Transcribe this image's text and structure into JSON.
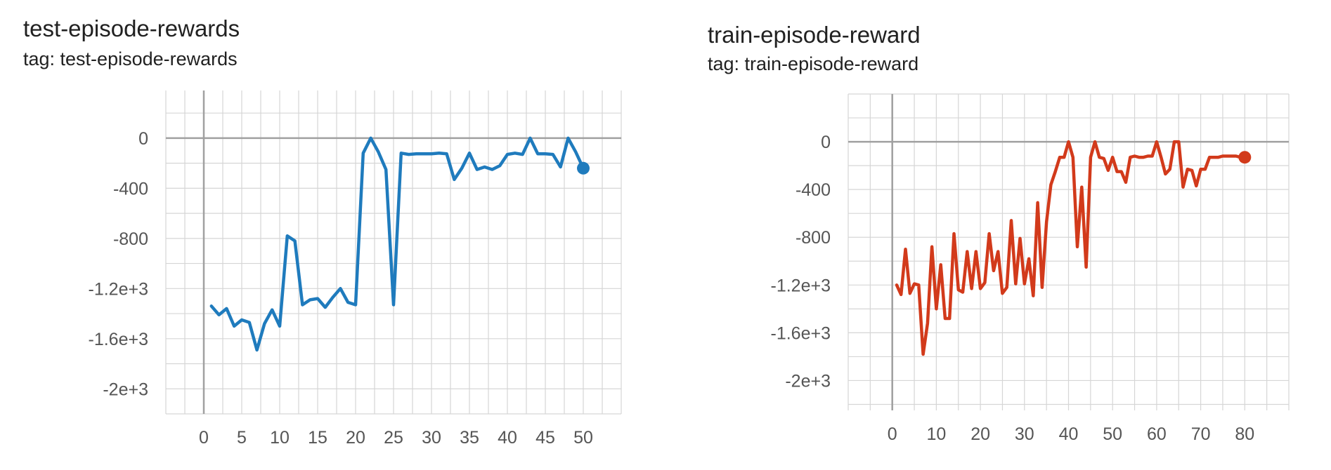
{
  "charts": [
    {
      "title": "test-episode-rewards",
      "subtitle": "tag: test-episode-rewards"
    },
    {
      "title": "train-episode-reward",
      "subtitle": "tag: train-episode-reward"
    }
  ],
  "chart_data": [
    {
      "type": "line",
      "title": "test-episode-rewards",
      "subtitle": "tag: test-episode-rewards",
      "xlabel": "",
      "ylabel": "",
      "grid": true,
      "xlim": [
        -5,
        55
      ],
      "ylim": [
        -2200,
        380
      ],
      "x_ticks": [
        0,
        5,
        10,
        15,
        20,
        25,
        30,
        35,
        40,
        45,
        50
      ],
      "x_tick_labels": [
        "0",
        "5",
        "10",
        "15",
        "20",
        "25",
        "30",
        "35",
        "40",
        "45",
        "50"
      ],
      "y_ticks": [
        0,
        -400,
        -800,
        -1200,
        -1600,
        -2000
      ],
      "y_tick_labels": [
        "0",
        "-400",
        "-800",
        "-1.2e+3",
        "-1.6e+3",
        "-2e+3"
      ],
      "color": "#1f7bbd",
      "x": [
        1,
        2,
        3,
        4,
        5,
        6,
        7,
        8,
        9,
        10,
        11,
        12,
        13,
        14,
        15,
        16,
        17,
        18,
        19,
        20,
        21,
        22,
        23,
        24,
        25,
        26,
        27,
        28,
        29,
        30,
        31,
        32,
        33,
        34,
        35,
        36,
        37,
        38,
        39,
        40,
        41,
        42,
        43,
        44,
        45,
        46,
        47,
        48,
        49,
        50
      ],
      "y": [
        -1340,
        -1410,
        -1360,
        -1500,
        -1450,
        -1470,
        -1690,
        -1480,
        -1370,
        -1500,
        -780,
        -820,
        -1330,
        -1290,
        -1280,
        -1350,
        -1270,
        -1200,
        -1310,
        -1330,
        -120,
        0,
        -110,
        -250,
        -1330,
        -120,
        -130,
        -125,
        -125,
        -125,
        -120,
        -125,
        -330,
        -240,
        -120,
        -250,
        -230,
        -250,
        -220,
        -130,
        -120,
        -130,
        0,
        -125,
        -125,
        -130,
        -230,
        0,
        -110,
        -240
      ]
    },
    {
      "type": "line",
      "title": "train-episode-reward",
      "subtitle": "tag: train-episode-reward",
      "xlabel": "",
      "ylabel": "",
      "grid": true,
      "xlim": [
        -10,
        90
      ],
      "ylim": [
        -2250,
        400
      ],
      "x_ticks": [
        0,
        10,
        20,
        30,
        40,
        50,
        60,
        70,
        80
      ],
      "x_tick_labels": [
        "0",
        "10",
        "20",
        "30",
        "40",
        "50",
        "60",
        "70",
        "80"
      ],
      "y_ticks": [
        0,
        -400,
        -800,
        -1200,
        -1600,
        -2000
      ],
      "y_tick_labels": [
        "0",
        "-400",
        "-800",
        "-1.2e+3",
        "-1.6e+3",
        "-2e+3"
      ],
      "color": "#d23a1b",
      "x": [
        1,
        2,
        3,
        4,
        5,
        6,
        7,
        8,
        9,
        10,
        11,
        12,
        13,
        14,
        15,
        16,
        17,
        18,
        19,
        20,
        21,
        22,
        23,
        24,
        25,
        26,
        27,
        28,
        29,
        30,
        31,
        32,
        33,
        34,
        35,
        36,
        37,
        38,
        39,
        40,
        41,
        42,
        43,
        44,
        45,
        46,
        47,
        48,
        49,
        50,
        51,
        52,
        53,
        54,
        55,
        56,
        57,
        58,
        59,
        60,
        61,
        62,
        63,
        64,
        65,
        66,
        67,
        68,
        69,
        70,
        71,
        72,
        73,
        74,
        75,
        76,
        77,
        78,
        79,
        80
      ],
      "y": [
        -1200,
        -1280,
        -900,
        -1270,
        -1190,
        -1200,
        -1780,
        -1520,
        -880,
        -1400,
        -1030,
        -1480,
        -1480,
        -770,
        -1240,
        -1260,
        -920,
        -1230,
        -920,
        -1230,
        -1180,
        -770,
        -1080,
        -920,
        -1270,
        -1220,
        -660,
        -1190,
        -810,
        -1190,
        -980,
        -1290,
        -510,
        -1220,
        -670,
        -360,
        -250,
        -130,
        -130,
        0,
        -130,
        -880,
        -380,
        -1050,
        -130,
        0,
        -130,
        -140,
        -240,
        -130,
        -250,
        -250,
        -340,
        -130,
        -120,
        -130,
        -130,
        -120,
        -120,
        0,
        -130,
        -270,
        -230,
        0,
        0,
        -380,
        -230,
        -240,
        -370,
        -230,
        -230,
        -130,
        -130,
        -130,
        -120,
        -120,
        -120,
        -120,
        -130,
        -130
      ]
    }
  ]
}
